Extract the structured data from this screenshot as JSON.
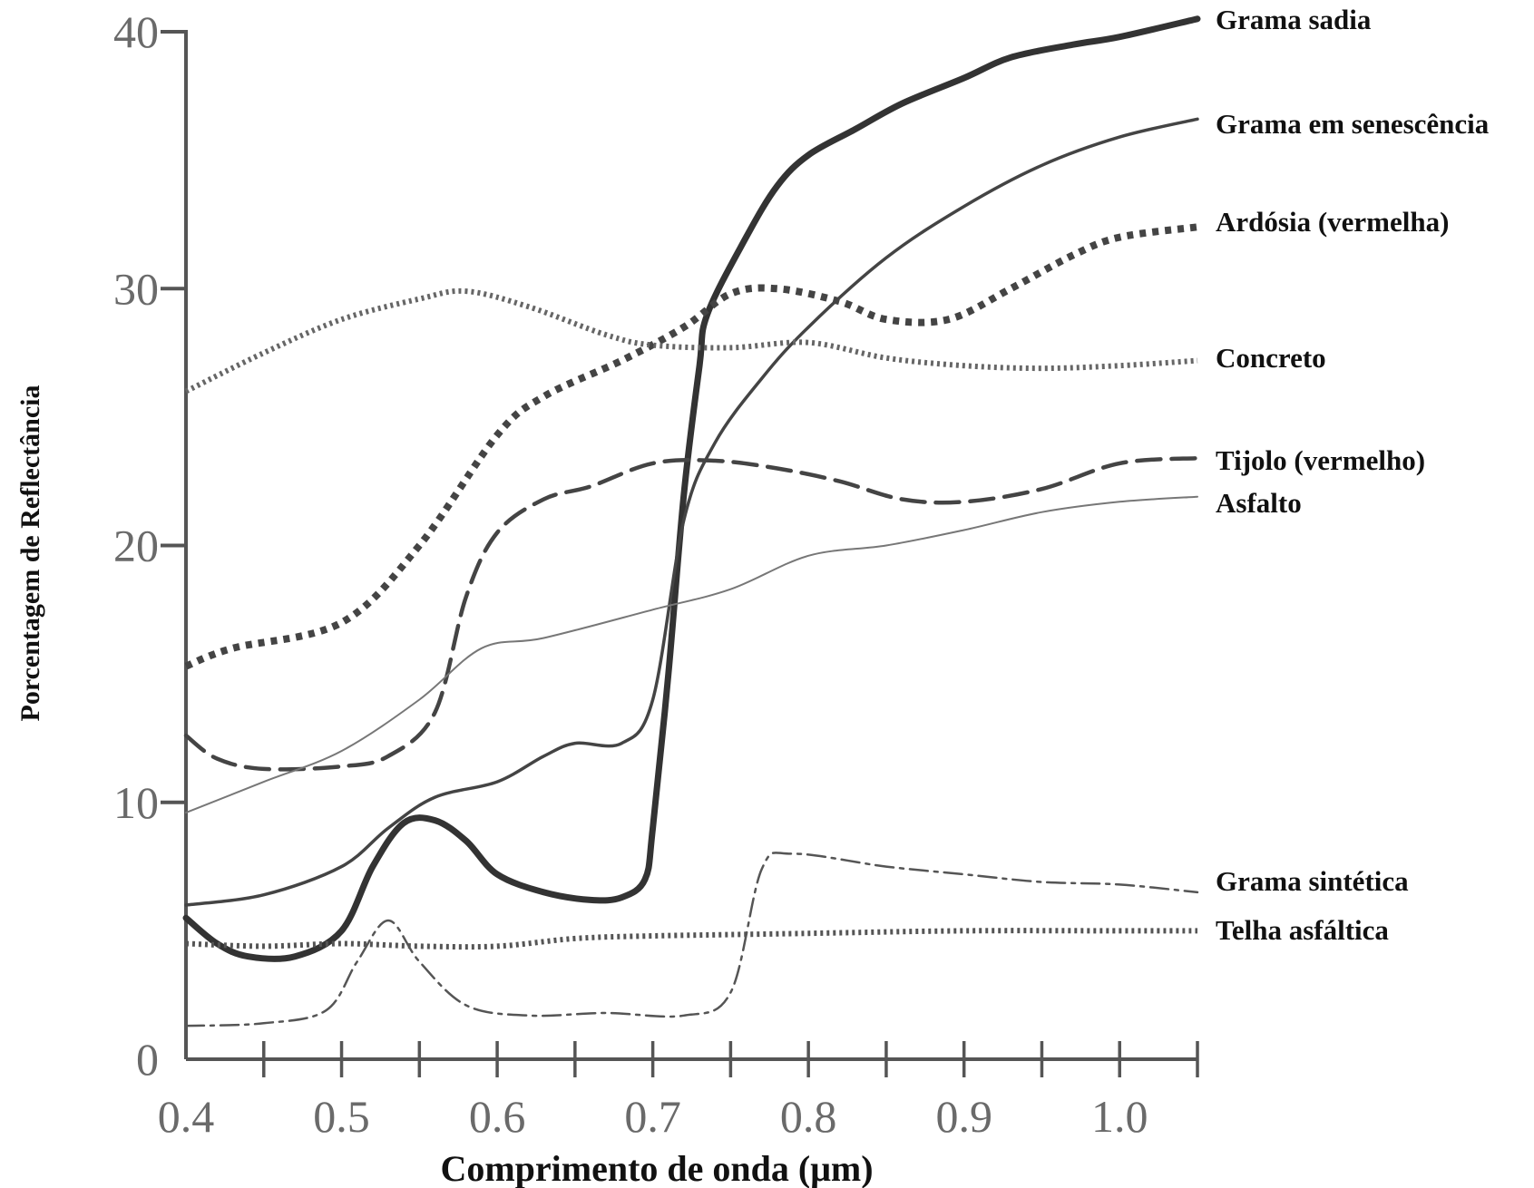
{
  "chart_data": {
    "type": "line",
    "xlabel": "Comprimento de onda (μm)",
    "ylabel": "Porcentagem de Reflectância",
    "xlim": [
      0.4,
      1.05
    ],
    "ylim": [
      0,
      40
    ],
    "x_ticks": [
      {
        "value": 0.4,
        "label": "0.4"
      },
      {
        "value": 0.5,
        "label": "0.5"
      },
      {
        "value": 0.6,
        "label": "0.6"
      },
      {
        "value": 0.7,
        "label": "0.7"
      },
      {
        "value": 0.8,
        "label": "0.8"
      },
      {
        "value": 0.9,
        "label": "0.9"
      },
      {
        "value": 1.0,
        "label": "1.0"
      }
    ],
    "y_ticks": [
      {
        "value": 0,
        "label": "0"
      },
      {
        "value": 10,
        "label": "10"
      },
      {
        "value": 20,
        "label": "20"
      },
      {
        "value": 30,
        "label": "30"
      },
      {
        "value": 40,
        "label": "40"
      }
    ],
    "grid": false,
    "legend": "labels at right end of each line",
    "series": [
      {
        "name": "Grama sadia",
        "style": "thick-solid",
        "color": "#333333",
        "points": [
          [
            0.4,
            5.5
          ],
          [
            0.42,
            4.5
          ],
          [
            0.44,
            4.0
          ],
          [
            0.47,
            4.0
          ],
          [
            0.5,
            5.0
          ],
          [
            0.52,
            7.5
          ],
          [
            0.54,
            9.2
          ],
          [
            0.56,
            9.3
          ],
          [
            0.58,
            8.5
          ],
          [
            0.6,
            7.2
          ],
          [
            0.63,
            6.5
          ],
          [
            0.66,
            6.2
          ],
          [
            0.68,
            6.3
          ],
          [
            0.695,
            7.0
          ],
          [
            0.7,
            9.0
          ],
          [
            0.71,
            15.0
          ],
          [
            0.72,
            22.0
          ],
          [
            0.73,
            27.0
          ],
          [
            0.735,
            29.0
          ],
          [
            0.76,
            32.0
          ],
          [
            0.78,
            34.0
          ],
          [
            0.8,
            35.2
          ],
          [
            0.83,
            36.2
          ],
          [
            0.86,
            37.2
          ],
          [
            0.9,
            38.2
          ],
          [
            0.93,
            39.0
          ],
          [
            0.97,
            39.5
          ],
          [
            1.0,
            39.8
          ],
          [
            1.05,
            40.5
          ]
        ]
      },
      {
        "name": "Grama em senescência",
        "style": "medium-solid",
        "color": "#444444",
        "points": [
          [
            0.4,
            6.0
          ],
          [
            0.45,
            6.4
          ],
          [
            0.5,
            7.5
          ],
          [
            0.53,
            9.0
          ],
          [
            0.56,
            10.2
          ],
          [
            0.6,
            10.8
          ],
          [
            0.63,
            11.8
          ],
          [
            0.65,
            12.3
          ],
          [
            0.68,
            12.3
          ],
          [
            0.7,
            14.0
          ],
          [
            0.72,
            21.0
          ],
          [
            0.74,
            24.0
          ],
          [
            0.77,
            26.5
          ],
          [
            0.8,
            28.5
          ],
          [
            0.85,
            31.2
          ],
          [
            0.9,
            33.2
          ],
          [
            0.95,
            34.8
          ],
          [
            1.0,
            35.9
          ],
          [
            1.05,
            36.6
          ]
        ]
      },
      {
        "name": "Ardósia (vermelha)",
        "style": "thick-dotted",
        "color": "#444444",
        "points": [
          [
            0.4,
            15.3
          ],
          [
            0.43,
            16.0
          ],
          [
            0.5,
            17.0
          ],
          [
            0.55,
            20.0
          ],
          [
            0.6,
            24.3
          ],
          [
            0.63,
            25.8
          ],
          [
            0.68,
            27.2
          ],
          [
            0.72,
            28.5
          ],
          [
            0.75,
            29.8
          ],
          [
            0.78,
            30.0
          ],
          [
            0.82,
            29.5
          ],
          [
            0.85,
            28.8
          ],
          [
            0.89,
            28.8
          ],
          [
            0.93,
            30.0
          ],
          [
            0.97,
            31.3
          ],
          [
            1.0,
            32.0
          ],
          [
            1.05,
            32.4
          ]
        ]
      },
      {
        "name": "Concreto",
        "style": "dotted",
        "color": "#666666",
        "points": [
          [
            0.4,
            26.0
          ],
          [
            0.45,
            27.5
          ],
          [
            0.5,
            28.8
          ],
          [
            0.55,
            29.6
          ],
          [
            0.58,
            29.9
          ],
          [
            0.62,
            29.3
          ],
          [
            0.67,
            28.2
          ],
          [
            0.7,
            27.8
          ],
          [
            0.75,
            27.7
          ],
          [
            0.8,
            27.9
          ],
          [
            0.85,
            27.3
          ],
          [
            0.9,
            27.0
          ],
          [
            0.95,
            26.9
          ],
          [
            1.0,
            27.0
          ],
          [
            1.05,
            27.2
          ]
        ]
      },
      {
        "name": "Tijolo (vermelho)",
        "style": "dashed",
        "color": "#444444",
        "points": [
          [
            0.4,
            12.6
          ],
          [
            0.42,
            11.7
          ],
          [
            0.45,
            11.3
          ],
          [
            0.5,
            11.4
          ],
          [
            0.53,
            11.8
          ],
          [
            0.56,
            13.5
          ],
          [
            0.58,
            18.0
          ],
          [
            0.6,
            20.5
          ],
          [
            0.63,
            21.8
          ],
          [
            0.66,
            22.3
          ],
          [
            0.7,
            23.2
          ],
          [
            0.74,
            23.3
          ],
          [
            0.78,
            23.0
          ],
          [
            0.82,
            22.5
          ],
          [
            0.86,
            21.8
          ],
          [
            0.9,
            21.7
          ],
          [
            0.95,
            22.2
          ],
          [
            1.0,
            23.2
          ],
          [
            1.05,
            23.4
          ]
        ]
      },
      {
        "name": "Asfalto",
        "style": "thin-solid",
        "color": "#777777",
        "points": [
          [
            0.4,
            9.6
          ],
          [
            0.45,
            10.8
          ],
          [
            0.5,
            12.0
          ],
          [
            0.55,
            14.0
          ],
          [
            0.59,
            16.0
          ],
          [
            0.63,
            16.4
          ],
          [
            0.7,
            17.5
          ],
          [
            0.75,
            18.3
          ],
          [
            0.8,
            19.6
          ],
          [
            0.85,
            20.0
          ],
          [
            0.9,
            20.6
          ],
          [
            0.95,
            21.3
          ],
          [
            1.0,
            21.7
          ],
          [
            1.05,
            21.9
          ]
        ]
      },
      {
        "name": "Grama sintética",
        "style": "dash-dot",
        "color": "#555555",
        "points": [
          [
            0.4,
            1.3
          ],
          [
            0.45,
            1.4
          ],
          [
            0.49,
            1.9
          ],
          [
            0.51,
            3.8
          ],
          [
            0.53,
            5.4
          ],
          [
            0.55,
            3.8
          ],
          [
            0.58,
            2.1
          ],
          [
            0.62,
            1.7
          ],
          [
            0.67,
            1.8
          ],
          [
            0.72,
            1.7
          ],
          [
            0.75,
            2.6
          ],
          [
            0.77,
            7.4
          ],
          [
            0.79,
            8.0
          ],
          [
            0.85,
            7.5
          ],
          [
            0.9,
            7.2
          ],
          [
            0.95,
            6.9
          ],
          [
            1.0,
            6.8
          ],
          [
            1.05,
            6.5
          ]
        ]
      },
      {
        "name": "Telha asfáltica",
        "style": "dotted",
        "color": "#555555",
        "points": [
          [
            0.4,
            4.5
          ],
          [
            0.45,
            4.4
          ],
          [
            0.5,
            4.5
          ],
          [
            0.55,
            4.4
          ],
          [
            0.6,
            4.4
          ],
          [
            0.65,
            4.7
          ],
          [
            0.7,
            4.8
          ],
          [
            0.8,
            4.9
          ],
          [
            0.9,
            5.0
          ],
          [
            1.0,
            5.0
          ],
          [
            1.05,
            5.0
          ]
        ]
      }
    ]
  }
}
